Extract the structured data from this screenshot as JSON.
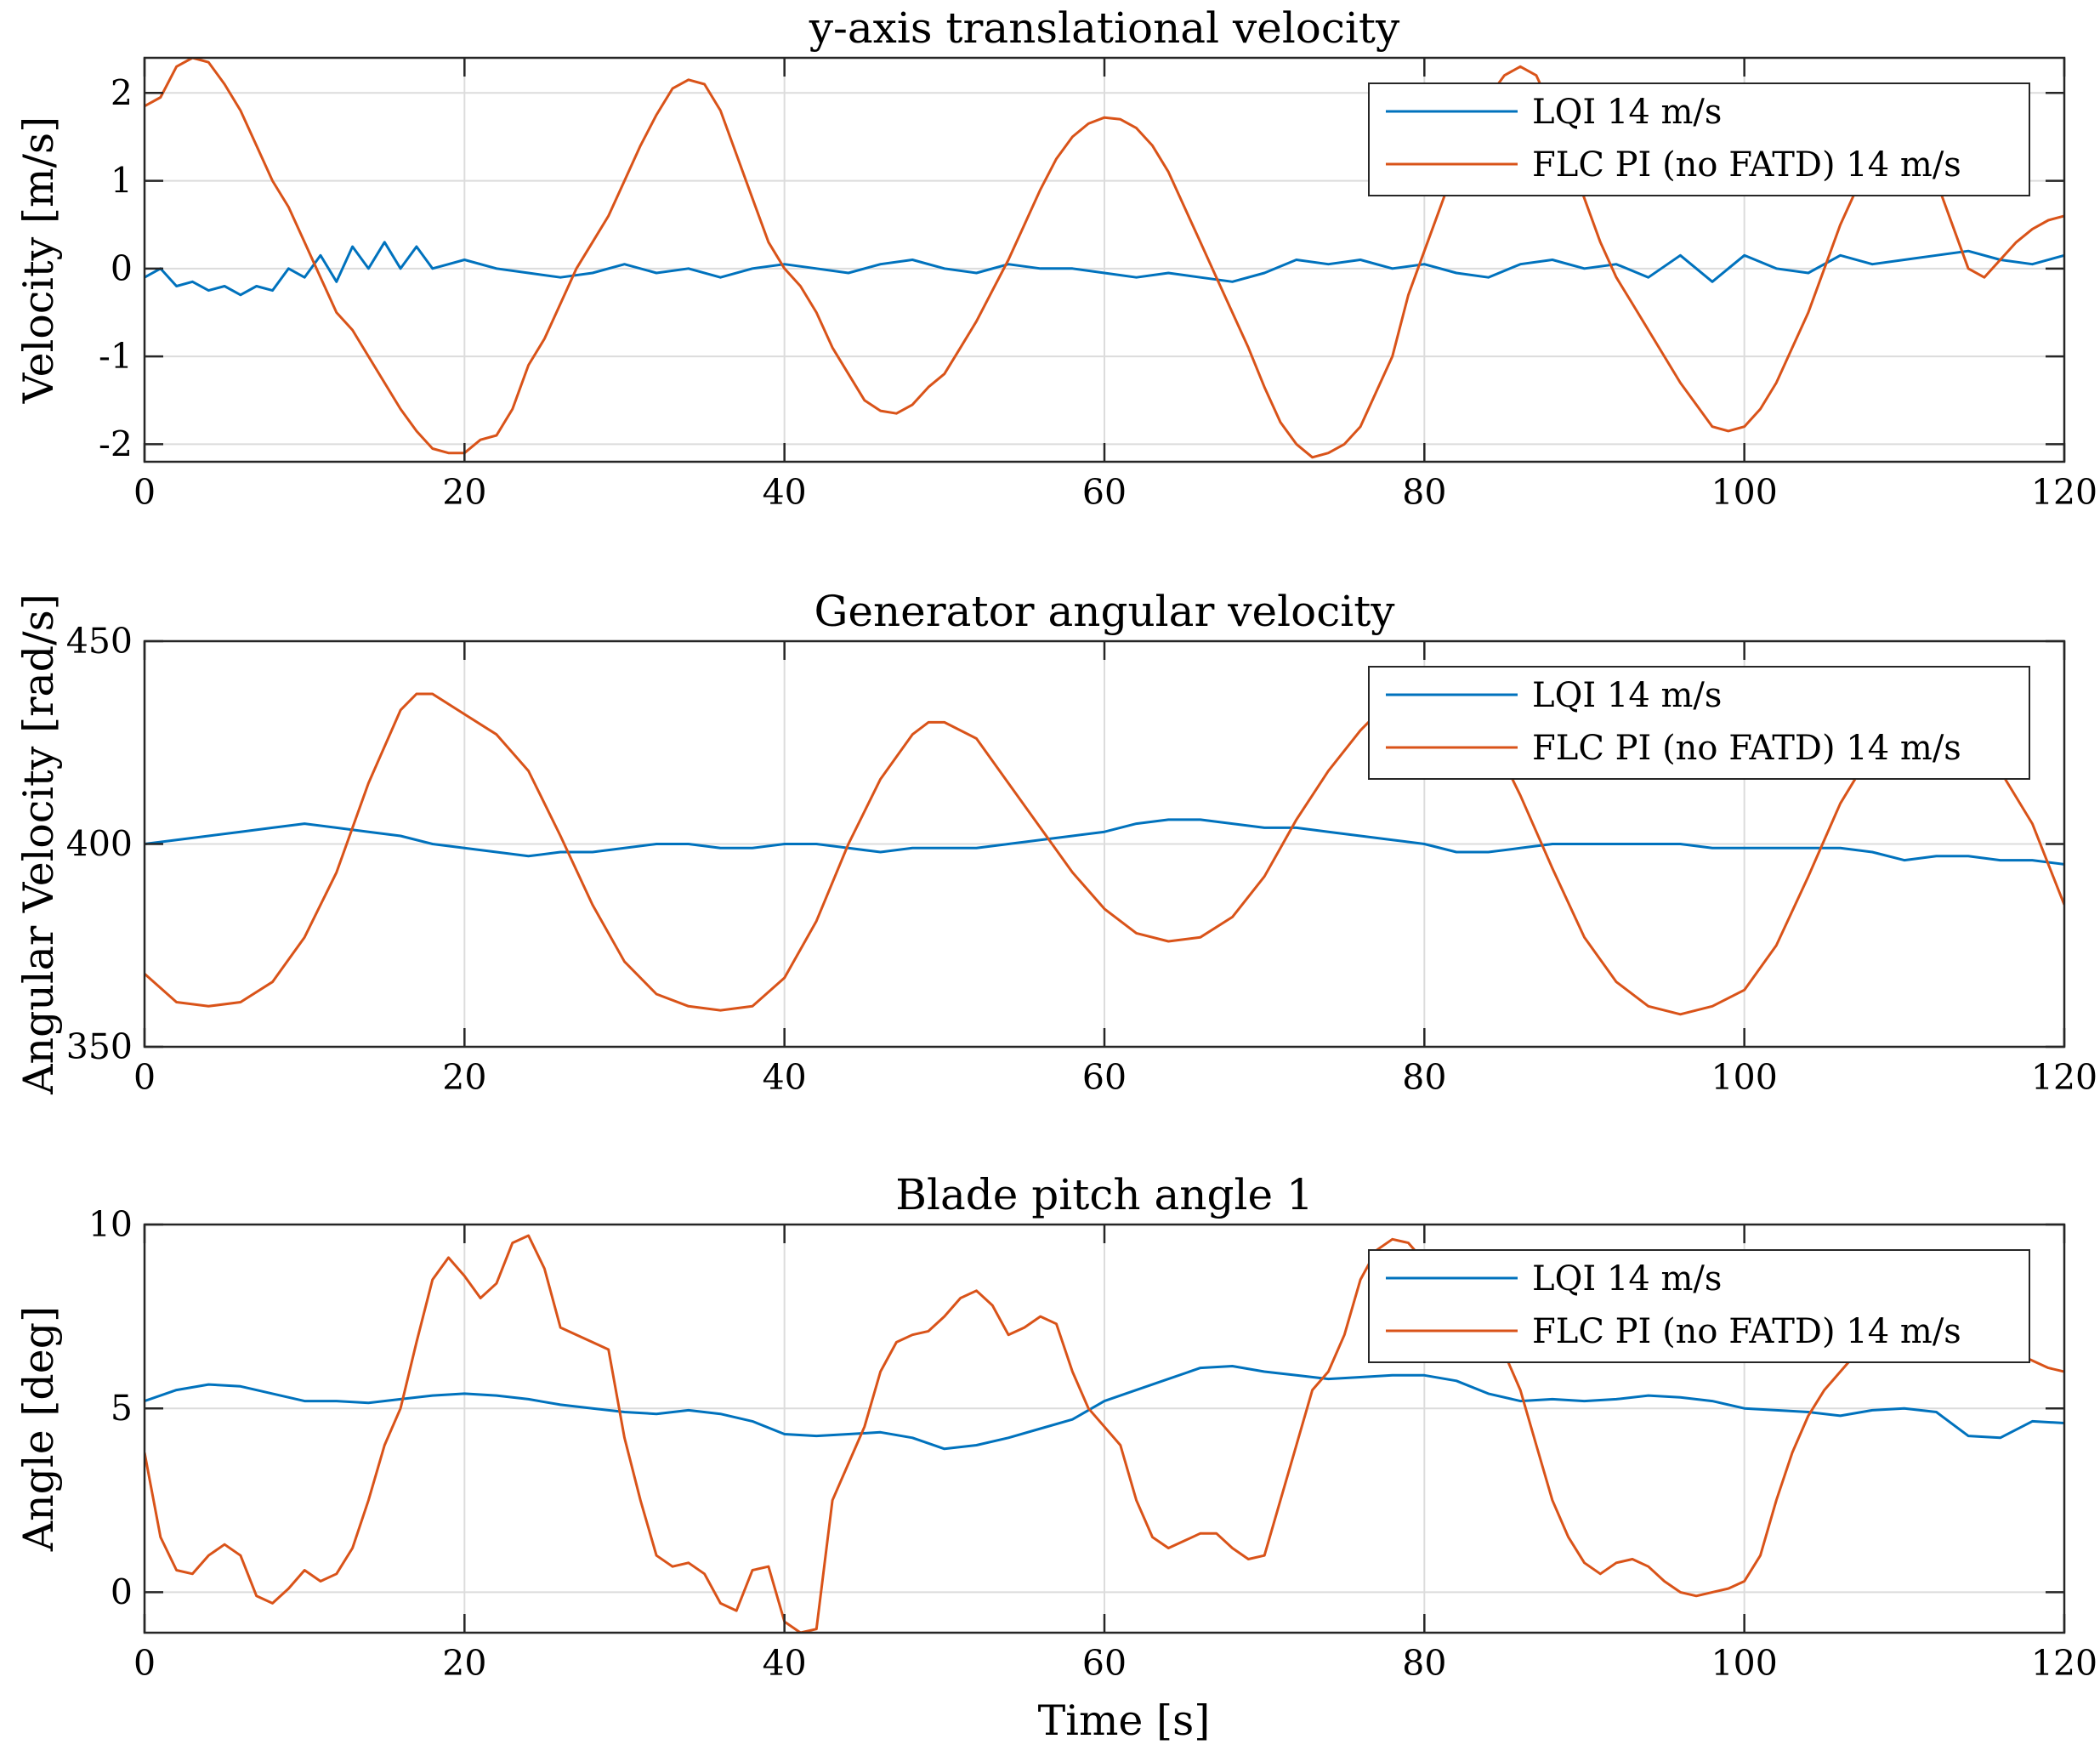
{
  "colors": {
    "lqi": "#0072BD",
    "flc": "#D95319"
  },
  "x_axis_label": "Time [s]",
  "chart_data": [
    {
      "type": "line",
      "title": "y-axis translational velocity",
      "xlabel": "",
      "ylabel": "Velocity [m/s]",
      "xlim": [
        0,
        120
      ],
      "ylim": [
        -2.2,
        2.4
      ],
      "xticks": [
        0,
        20,
        40,
        60,
        80,
        100,
        120
      ],
      "yticks": [
        -2,
        -1,
        0,
        1,
        2
      ],
      "grid": true,
      "legend_position": "top-right",
      "series": [
        {
          "name": "LQI 14 m/s",
          "color": "#0072BD",
          "x": [
            0,
            1,
            2,
            3,
            4,
            5,
            6,
            7,
            8,
            9,
            10,
            11,
            12,
            13,
            14,
            15,
            16,
            17,
            18,
            19,
            20,
            22,
            24,
            26,
            28,
            30,
            32,
            34,
            36,
            38,
            40,
            42,
            44,
            46,
            48,
            50,
            52,
            54,
            56,
            58,
            60,
            62,
            64,
            66,
            68,
            70,
            72,
            74,
            76,
            78,
            80,
            82,
            84,
            86,
            88,
            90,
            92,
            94,
            96,
            98,
            100,
            102,
            104,
            106,
            108,
            110,
            112,
            114,
            116,
            118,
            120
          ],
          "y": [
            -0.1,
            0.0,
            -0.2,
            -0.15,
            -0.25,
            -0.2,
            -0.3,
            -0.2,
            -0.25,
            0.0,
            -0.1,
            0.15,
            -0.15,
            0.25,
            0.0,
            0.3,
            0.0,
            0.25,
            0.0,
            0.05,
            0.1,
            0.0,
            -0.05,
            -0.1,
            -0.05,
            0.05,
            -0.05,
            0.0,
            -0.1,
            0.0,
            0.05,
            0.0,
            -0.05,
            0.05,
            0.1,
            0.0,
            -0.05,
            0.05,
            0.0,
            0.0,
            -0.05,
            -0.1,
            -0.05,
            -0.1,
            -0.15,
            -0.05,
            0.1,
            0.05,
            0.1,
            0.0,
            0.05,
            -0.05,
            -0.1,
            0.05,
            0.1,
            0.0,
            0.05,
            -0.1,
            0.15,
            -0.15,
            0.15,
            0.0,
            -0.05,
            0.15,
            0.05,
            0.1,
            0.15,
            0.2,
            0.1,
            0.05,
            0.15
          ]
        },
        {
          "name": "FLC PI (no FATD) 14 m/s",
          "color": "#D95319",
          "x": [
            0,
            1,
            2,
            3,
            4,
            5,
            6,
            7,
            8,
            9,
            10,
            11,
            12,
            13,
            14,
            15,
            16,
            17,
            18,
            19,
            20,
            21,
            22,
            23,
            24,
            25,
            26,
            27,
            28,
            29,
            30,
            31,
            32,
            33,
            34,
            35,
            36,
            37,
            38,
            39,
            40,
            41,
            42,
            43,
            44,
            45,
            46,
            47,
            48,
            49,
            50,
            51,
            52,
            53,
            54,
            55,
            56,
            57,
            58,
            59,
            60,
            61,
            62,
            63,
            64,
            65,
            66,
            67,
            68,
            69,
            70,
            71,
            72,
            73,
            74,
            75,
            76,
            77,
            78,
            79,
            80,
            81,
            82,
            83,
            84,
            85,
            86,
            87,
            88,
            89,
            90,
            91,
            92,
            93,
            94,
            95,
            96,
            97,
            98,
            99,
            100,
            101,
            102,
            103,
            104,
            105,
            106,
            107,
            108,
            109,
            110,
            111,
            112,
            113,
            114,
            115,
            116,
            117,
            118,
            119,
            120
          ],
          "y": [
            1.85,
            1.95,
            2.3,
            2.4,
            2.35,
            2.1,
            1.8,
            1.4,
            1.0,
            0.7,
            0.3,
            -0.1,
            -0.5,
            -0.7,
            -1.0,
            -1.3,
            -1.6,
            -1.85,
            -2.05,
            -2.1,
            -2.1,
            -1.95,
            -1.9,
            -1.6,
            -1.1,
            -0.8,
            -0.4,
            0.0,
            0.3,
            0.6,
            1.0,
            1.4,
            1.75,
            2.05,
            2.15,
            2.1,
            1.8,
            1.3,
            0.8,
            0.3,
            0.0,
            -0.2,
            -0.5,
            -0.9,
            -1.2,
            -1.5,
            -1.62,
            -1.65,
            -1.55,
            -1.35,
            -1.2,
            -0.9,
            -0.6,
            -0.25,
            0.1,
            0.5,
            0.9,
            1.25,
            1.5,
            1.65,
            1.72,
            1.7,
            1.6,
            1.4,
            1.1,
            0.7,
            0.3,
            -0.1,
            -0.5,
            -0.9,
            -1.35,
            -1.75,
            -2.0,
            -2.15,
            -2.1,
            -2.0,
            -1.8,
            -1.4,
            -1.0,
            -0.3,
            0.2,
            0.7,
            1.2,
            1.6,
            1.95,
            2.2,
            2.3,
            2.2,
            1.8,
            1.3,
            0.8,
            0.3,
            -0.1,
            -0.4,
            -0.7,
            -1.0,
            -1.3,
            -1.55,
            -1.8,
            -1.85,
            -1.8,
            -1.6,
            -1.3,
            -0.9,
            -0.5,
            0.0,
            0.5,
            0.9,
            1.2,
            1.4,
            1.5,
            1.4,
            1.0,
            0.5,
            0.0,
            -0.1,
            0.1,
            0.3,
            0.45,
            0.55,
            0.6
          ]
        }
      ]
    },
    {
      "type": "line",
      "title": "Generator angular velocity",
      "xlabel": "",
      "ylabel": "Angular Velocity [rad/s]",
      "xlim": [
        0,
        120
      ],
      "ylim": [
        350,
        450
      ],
      "xticks": [
        0,
        20,
        40,
        60,
        80,
        100,
        120
      ],
      "yticks": [
        350,
        400,
        450
      ],
      "grid": true,
      "legend_position": "top-right",
      "series": [
        {
          "name": "LQI 14 m/s",
          "color": "#0072BD",
          "x": [
            0,
            2,
            4,
            6,
            8,
            10,
            12,
            14,
            16,
            18,
            20,
            22,
            24,
            26,
            28,
            30,
            32,
            34,
            36,
            38,
            40,
            42,
            44,
            46,
            48,
            50,
            52,
            54,
            56,
            58,
            60,
            62,
            64,
            66,
            68,
            70,
            72,
            74,
            76,
            78,
            80,
            82,
            84,
            86,
            88,
            90,
            92,
            94,
            96,
            98,
            100,
            102,
            104,
            106,
            108,
            110,
            112,
            114,
            116,
            118,
            120
          ],
          "y": [
            400,
            401,
            402,
            403,
            404,
            405,
            404,
            403,
            402,
            400,
            399,
            398,
            397,
            398,
            398,
            399,
            400,
            400,
            399,
            399,
            400,
            400,
            399,
            398,
            399,
            399,
            399,
            400,
            401,
            402,
            403,
            405,
            406,
            406,
            405,
            404,
            404,
            403,
            402,
            401,
            400,
            398,
            398,
            399,
            400,
            400,
            400,
            400,
            400,
            399,
            399,
            399,
            399,
            399,
            398,
            396,
            397,
            397,
            396,
            396,
            395
          ]
        },
        {
          "name": "FLC PI (no FATD) 14 m/s",
          "color": "#D95319",
          "x": [
            0,
            2,
            4,
            6,
            8,
            10,
            12,
            14,
            16,
            17,
            18,
            20,
            22,
            24,
            26,
            28,
            30,
            32,
            34,
            36,
            38,
            40,
            42,
            44,
            46,
            48,
            49,
            50,
            52,
            54,
            56,
            58,
            60,
            62,
            64,
            66,
            68,
            70,
            72,
            74,
            76,
            78,
            80,
            82,
            84,
            86,
            88,
            90,
            92,
            94,
            96,
            98,
            100,
            102,
            104,
            106,
            108,
            110,
            112,
            114,
            116,
            118,
            120
          ],
          "y": [
            368,
            361,
            360,
            361,
            366,
            377,
            393,
            415,
            433,
            437,
            437,
            432,
            427,
            418,
            402,
            385,
            371,
            363,
            360,
            359,
            360,
            367,
            381,
            400,
            416,
            427,
            430,
            430,
            426,
            415,
            404,
            393,
            384,
            378,
            376,
            377,
            382,
            392,
            406,
            418,
            428,
            436,
            438,
            437,
            428,
            412,
            394,
            377,
            366,
            360,
            358,
            360,
            364,
            375,
            392,
            410,
            423,
            431,
            433,
            428,
            418,
            405,
            385
          ]
        }
      ]
    },
    {
      "type": "line",
      "title": "Blade pitch angle 1",
      "xlabel": "Time [s]",
      "ylabel": "Angle [deg]",
      "xlim": [
        0,
        120
      ],
      "ylim": [
        -1.1,
        10
      ],
      "xticks": [
        0,
        20,
        40,
        60,
        80,
        100,
        120
      ],
      "yticks": [
        0,
        5,
        10
      ],
      "grid": true,
      "legend_position": "top-right",
      "series": [
        {
          "name": "LQI 14 m/s",
          "color": "#0072BD",
          "x": [
            0,
            2,
            4,
            6,
            8,
            10,
            12,
            14,
            16,
            18,
            20,
            22,
            24,
            26,
            28,
            30,
            32,
            34,
            36,
            38,
            40,
            42,
            44,
            46,
            48,
            50,
            52,
            54,
            56,
            58,
            60,
            62,
            64,
            66,
            68,
            70,
            72,
            74,
            76,
            78,
            80,
            82,
            84,
            86,
            88,
            90,
            92,
            94,
            96,
            98,
            100,
            102,
            104,
            106,
            108,
            110,
            112,
            114,
            116,
            118,
            120
          ],
          "y": [
            5.2,
            5.5,
            5.65,
            5.6,
            5.4,
            5.2,
            5.2,
            5.15,
            5.25,
            5.35,
            5.4,
            5.35,
            5.25,
            5.1,
            5.0,
            4.9,
            4.85,
            4.95,
            4.85,
            4.65,
            4.3,
            4.25,
            4.3,
            4.35,
            4.2,
            3.9,
            4.0,
            4.2,
            4.45,
            4.7,
            5.2,
            5.5,
            5.8,
            6.1,
            6.15,
            6.0,
            5.9,
            5.8,
            5.85,
            5.9,
            5.9,
            5.75,
            5.4,
            5.2,
            5.25,
            5.2,
            5.25,
            5.35,
            5.3,
            5.2,
            5.0,
            4.95,
            4.9,
            4.8,
            4.95,
            5.0,
            4.9,
            4.25,
            4.2,
            4.65,
            4.6
          ]
        },
        {
          "name": "FLC PI (no FATD) 14 m/s",
          "color": "#D95319",
          "x": [
            0,
            1,
            2,
            3,
            4,
            5,
            6,
            7,
            8,
            9,
            10,
            11,
            12,
            13,
            14,
            15,
            16,
            17,
            18,
            19,
            20,
            21,
            22,
            23,
            24,
            25,
            26,
            27,
            28,
            29,
            30,
            31,
            32,
            33,
            34,
            35,
            36,
            37,
            38,
            39,
            40,
            41,
            42,
            43,
            44,
            45,
            46,
            47,
            48,
            49,
            50,
            51,
            52,
            53,
            54,
            55,
            56,
            57,
            58,
            59,
            60,
            61,
            62,
            63,
            64,
            65,
            66,
            67,
            68,
            69,
            70,
            71,
            72,
            73,
            74,
            75,
            76,
            77,
            78,
            79,
            80,
            81,
            82,
            83,
            84,
            85,
            86,
            87,
            88,
            89,
            90,
            91,
            92,
            93,
            94,
            95,
            96,
            97,
            98,
            99,
            100,
            101,
            102,
            103,
            104,
            105,
            106,
            107,
            108,
            109,
            110,
            111,
            112,
            113,
            114,
            115,
            116,
            117,
            118,
            119,
            120
          ],
          "y": [
            3.8,
            1.5,
            0.6,
            0.5,
            1.0,
            1.3,
            1.0,
            -0.1,
            -0.3,
            0.1,
            0.6,
            0.3,
            0.5,
            1.2,
            2.5,
            4.0,
            5.0,
            6.8,
            8.5,
            9.1,
            8.6,
            8.0,
            8.4,
            9.5,
            9.7,
            8.8,
            7.2,
            7.0,
            6.8,
            6.6,
            4.2,
            2.5,
            1.0,
            0.7,
            0.8,
            0.5,
            -0.3,
            -0.5,
            0.6,
            0.7,
            -0.8,
            -1.1,
            -1.0,
            2.5,
            3.5,
            4.5,
            6.0,
            6.8,
            7.0,
            7.1,
            7.5,
            8.0,
            8.2,
            7.8,
            7.0,
            7.2,
            7.5,
            7.3,
            6.0,
            5.0,
            4.5,
            4.0,
            2.5,
            1.5,
            1.2,
            1.4,
            1.6,
            1.6,
            1.2,
            0.9,
            1.0,
            2.5,
            4.0,
            5.5,
            6.0,
            7.0,
            8.5,
            9.3,
            9.6,
            9.5,
            9.0,
            8.4,
            8.0,
            7.7,
            7.5,
            6.5,
            5.5,
            4.0,
            2.5,
            1.5,
            0.8,
            0.5,
            0.8,
            0.9,
            0.7,
            0.3,
            0.0,
            -0.1,
            0.0,
            0.1,
            0.3,
            1.0,
            2.5,
            3.8,
            4.8,
            5.5,
            6.0,
            6.5,
            7.0,
            7.5,
            8.0,
            8.5,
            8.5,
            8.0,
            7.3,
            7.0,
            6.8,
            6.5,
            6.3,
            6.1,
            6.0
          ]
        }
      ]
    }
  ]
}
